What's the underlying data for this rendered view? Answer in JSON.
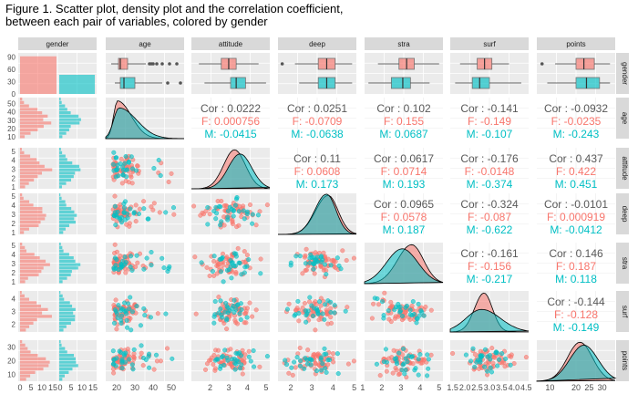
{
  "figure": {
    "title_line1": "Figure 1. Scatter plot, density plot and the correlation coefficient,",
    "title_line2": "between each pair of variables, colored by gender"
  },
  "colors": {
    "F": "#F8766D",
    "M": "#00BFC4",
    "panel_bg": "#EBEBEB",
    "grid": "#FFFFFF",
    "text": "#4D4D4D"
  },
  "chart_data": {
    "type": "scatter",
    "title": "Figure 1. Scatter plot, density plot and the correlation coefficient, between each pair of variables, colored by gender",
    "variables": [
      "gender",
      "age",
      "attitude",
      "deep",
      "stra",
      "surf",
      "points"
    ],
    "groups": [
      "F",
      "M"
    ],
    "grid": true,
    "column_tick_labels": [
      [
        "0",
        "5",
        "10",
        "15",
        "0",
        "5",
        "10",
        "15"
      ],
      [
        "20",
        "30",
        "40",
        "50"
      ],
      [
        "2",
        "3",
        "4",
        "5"
      ],
      [
        "2",
        "3",
        "4",
        "5"
      ],
      [
        "1",
        "2",
        "3",
        "4",
        "5"
      ],
      [
        "1.5",
        "2.0",
        "2.5",
        "3.0",
        "3.5",
        "4.0",
        "4.5"
      ],
      [
        "10",
        "20",
        "25",
        "30"
      ]
    ],
    "row_tick_labels": [
      [
        "90",
        "60",
        "30",
        "0"
      ],
      [
        "50",
        "40",
        "30",
        "20",
        "10"
      ],
      [
        "5",
        "4",
        "3",
        "2",
        "1"
      ],
      [
        "5",
        "4",
        "3",
        "2",
        "1"
      ],
      [
        "5",
        "4",
        "3",
        "2",
        "1"
      ],
      [
        "4",
        "3",
        "2"
      ],
      [
        "30",
        "20",
        "10"
      ]
    ],
    "gender_counts": {
      "F": 110,
      "M": 56
    },
    "boxplots": {
      "age": {
        "F": {
          "min": 17,
          "q1": 21,
          "median": 22,
          "q3": 26,
          "max": 36,
          "outliers": [
            38,
            39,
            40,
            42,
            45,
            49,
            53
          ]
        },
        "M": {
          "min": 19,
          "q1": 22,
          "median": 24,
          "q3": 30,
          "max": 45,
          "outliers": [
            48,
            55
          ]
        }
      },
      "attitude": {
        "F": {
          "min": 1.4,
          "q1": 2.6,
          "median": 3.0,
          "q3": 3.4,
          "max": 4.6,
          "outliers": []
        },
        "M": {
          "min": 1.7,
          "q1": 3.1,
          "median": 3.4,
          "q3": 3.9,
          "max": 5.0,
          "outliers": []
        }
      },
      "deep": {
        "F": {
          "min": 2.2,
          "q1": 3.3,
          "median": 3.7,
          "q3": 4.1,
          "max": 4.9,
          "outliers": [
            1.6
          ]
        },
        "M": {
          "min": 2.4,
          "q1": 3.3,
          "median": 3.7,
          "q3": 4.1,
          "max": 4.9,
          "outliers": []
        }
      },
      "stra": {
        "F": {
          "min": 1.8,
          "q1": 2.9,
          "median": 3.3,
          "q3": 3.7,
          "max": 5.0,
          "outliers": []
        },
        "M": {
          "min": 1.3,
          "q1": 2.5,
          "median": 3.1,
          "q3": 3.5,
          "max": 4.5,
          "outliers": []
        }
      },
      "surf": {
        "F": {
          "min": 1.8,
          "q1": 2.5,
          "median": 2.8,
          "q3": 3.1,
          "max": 3.8,
          "outliers": []
        },
        "M": {
          "min": 1.6,
          "q1": 2.3,
          "median": 2.6,
          "q3": 3.0,
          "max": 4.3,
          "outliers": []
        }
      },
      "points": {
        "F": {
          "min": 12,
          "q1": 20,
          "median": 23,
          "q3": 27,
          "max": 33,
          "outliers": [
            7
          ]
        },
        "M": {
          "min": 9,
          "q1": 20,
          "median": 24,
          "q3": 29,
          "max": 33,
          "outliers": []
        }
      }
    },
    "correlations": [
      {
        "pair": [
          "age",
          "attitude"
        ],
        "cor": "0.0222",
        "F": "0.000756",
        "M": "-0.0415"
      },
      {
        "pair": [
          "age",
          "deep"
        ],
        "cor": "0.0251",
        "F": "-0.0709",
        "M": "-0.0638"
      },
      {
        "pair": [
          "age",
          "stra"
        ],
        "cor": "0.102",
        "F": "0.155",
        "M": "0.0687"
      },
      {
        "pair": [
          "age",
          "surf"
        ],
        "cor": "-0.141",
        "F": "-0.149",
        "M": "-0.107"
      },
      {
        "pair": [
          "age",
          "points"
        ],
        "cor": "-0.0932",
        "F": "-0.0235",
        "M": "-0.243"
      },
      {
        "pair": [
          "attitude",
          "deep"
        ],
        "cor": "0.11",
        "F": "0.0608",
        "M": "0.173"
      },
      {
        "pair": [
          "attitude",
          "stra"
        ],
        "cor": "0.0617",
        "F": "0.0714",
        "M": "0.193"
      },
      {
        "pair": [
          "attitude",
          "surf"
        ],
        "cor": "-0.176",
        "F": "-0.0148",
        "M": "-0.374"
      },
      {
        "pair": [
          "attitude",
          "points"
        ],
        "cor": "0.437",
        "F": "0.422",
        "M": "0.451"
      },
      {
        "pair": [
          "deep",
          "stra"
        ],
        "cor": "0.0965",
        "F": "0.0578",
        "M": "0.187"
      },
      {
        "pair": [
          "deep",
          "surf"
        ],
        "cor": "-0.324",
        "F": "-0.087",
        "M": "-0.622"
      },
      {
        "pair": [
          "deep",
          "points"
        ],
        "cor": "-0.0101",
        "F": "0.000919",
        "M": "-0.0412"
      },
      {
        "pair": [
          "stra",
          "surf"
        ],
        "cor": "-0.161",
        "F": "-0.156",
        "M": "-0.217"
      },
      {
        "pair": [
          "stra",
          "points"
        ],
        "cor": "0.146",
        "F": "0.187",
        "M": "0.118"
      },
      {
        "pair": [
          "surf",
          "points"
        ],
        "cor": "-0.144",
        "F": "-0.128",
        "M": "-0.149"
      }
    ]
  }
}
